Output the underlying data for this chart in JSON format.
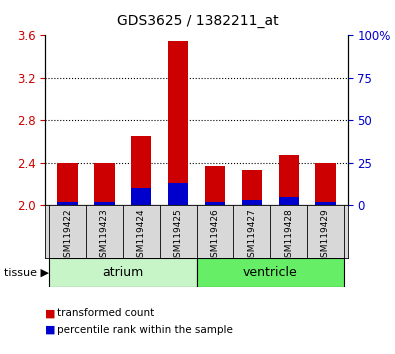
{
  "title": "GDS3625 / 1382211_at",
  "samples": [
    "GSM119422",
    "GSM119423",
    "GSM119424",
    "GSM119425",
    "GSM119426",
    "GSM119427",
    "GSM119428",
    "GSM119429"
  ],
  "red_values": [
    2.4,
    2.4,
    2.65,
    3.55,
    2.37,
    2.33,
    2.47,
    2.4
  ],
  "blue_percentile_pct": [
    2,
    2,
    10,
    13,
    2,
    3,
    5,
    2
  ],
  "base": 2.0,
  "ylim": [
    2.0,
    3.6
  ],
  "yticks_left": [
    2.0,
    2.4,
    2.8,
    3.2,
    3.6
  ],
  "yticks_right": [
    0,
    25,
    50,
    75,
    100
  ],
  "groups": [
    {
      "label": "atrium",
      "start": 0,
      "end": 4,
      "color": "#c8f5c8"
    },
    {
      "label": "ventricle",
      "start": 4,
      "end": 8,
      "color": "#66ee66"
    }
  ],
  "tissue_label": "tissue",
  "left_axis_color": "#cc0000",
  "right_axis_color": "#0000cc",
  "bar_color_red": "#cc0000",
  "bar_color_blue": "#0000cc",
  "label_bg_color": "#d8d8d8",
  "plot_bg": "white",
  "bar_width": 0.55
}
